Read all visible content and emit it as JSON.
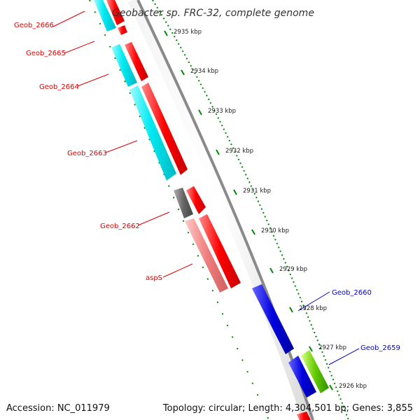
{
  "title": "Geobacter sp. FRC-32, complete genome",
  "footer": {
    "accession": "Accession: NC_011979",
    "topology": "Topology: circular; Length: 4,304,501 bp; Genes: 3,855"
  },
  "scale_labels": [
    "2935 kbp",
    "2934 kbp",
    "2933 kbp",
    "2932 kbp",
    "2931 kbp",
    "2930 kbp",
    "2929 kbp",
    "2928 kbp",
    "2927 kbp",
    "2926 kbp"
  ],
  "gene_labels": {
    "geob_2666": "Geob_2666",
    "geob_2665": "Geob_2665",
    "geob_2664": "Geob_2664",
    "geob_2663": "Geob_2663",
    "geob_2662": "Geob_2662",
    "asps": "aspS",
    "geob_2660": "Geob_2660",
    "geob_2659": "Geob_2659"
  },
  "colors": {
    "backbone": "#8a8a8a",
    "forward_gene": "#ff0000",
    "reverse_gene": "#00e5ee",
    "reverse_gene_rna": "#f08080",
    "hypothetical": "#666666",
    "blue_gene": "#0000dd",
    "green_gene": "#66cc00",
    "tick_green": "#008800",
    "label_red": "#dd0000",
    "label_blue": "#0000cc"
  }
}
